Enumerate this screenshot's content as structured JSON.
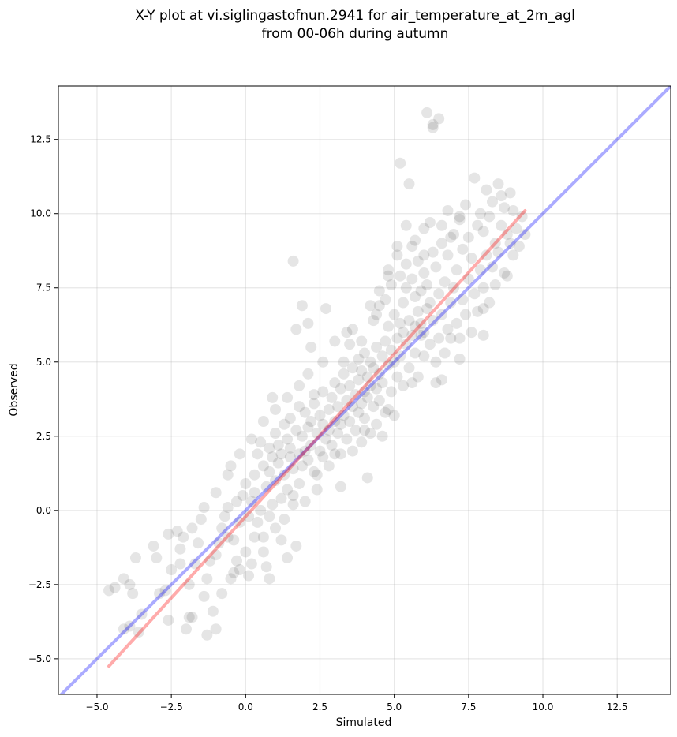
{
  "chart_data": {
    "type": "scatter",
    "title_line1": "X-Y plot at vi.siglingastofnun.2941 for air_temperature_at_2m_agl",
    "title_line2": "from 00-06h during autumn",
    "xlabel": "Simulated",
    "ylabel": "Observed",
    "xlim": [
      -6.3,
      14.3
    ],
    "ylim": [
      -6.2,
      14.3
    ],
    "xticks": [
      -5.0,
      -2.5,
      0.0,
      2.5,
      5.0,
      7.5,
      10.0,
      12.5
    ],
    "yticks": [
      -5.0,
      -2.5,
      0.0,
      2.5,
      5.0,
      7.5,
      10.0,
      12.5
    ],
    "xtick_labels": [
      "−5.0",
      "−2.5",
      "0.0",
      "2.5",
      "5.0",
      "7.5",
      "10.0",
      "12.5"
    ],
    "ytick_labels": [
      "−5.0",
      "−2.5",
      "0.0",
      "2.5",
      "5.0",
      "7.5",
      "10.0",
      "12.5"
    ],
    "grid": true,
    "point_color": "#000000",
    "point_alpha": 0.1,
    "identity_line": {
      "color": "#0000ff",
      "alpha": 0.33,
      "from": [
        -6.3,
        -6.3
      ],
      "to": [
        14.3,
        14.3
      ]
    },
    "fit_line": {
      "color": "#ff0000",
      "alpha": 0.33,
      "from": [
        -4.6,
        -5.25
      ],
      "to": [
        9.4,
        10.1
      ]
    },
    "points": [
      [
        -4.6,
        -2.7
      ],
      [
        -4.4,
        -2.6
      ],
      [
        -4.1,
        -2.3
      ],
      [
        -3.9,
        -2.5
      ],
      [
        -3.8,
        -2.8
      ],
      [
        -4.1,
        -4.0
      ],
      [
        -3.9,
        -3.9
      ],
      [
        -3.6,
        -4.1
      ],
      [
        -3.5,
        -3.5
      ],
      [
        -3.7,
        -1.6
      ],
      [
        -3.1,
        -1.2
      ],
      [
        -3.0,
        -1.6
      ],
      [
        -2.9,
        -2.8
      ],
      [
        -2.7,
        -2.7
      ],
      [
        -2.6,
        -3.7
      ],
      [
        -2.5,
        -2.0
      ],
      [
        -2.3,
        -0.7
      ],
      [
        -2.2,
        -1.3
      ],
      [
        -2.1,
        -0.9
      ],
      [
        -1.9,
        -3.6
      ],
      [
        -2.0,
        -4.0
      ],
      [
        -1.8,
        -3.6
      ],
      [
        -1.8,
        -0.6
      ],
      [
        -1.7,
        -1.8
      ],
      [
        -1.6,
        -1.1
      ],
      [
        -1.4,
        -2.9
      ],
      [
        -1.3,
        -2.3
      ],
      [
        -1.3,
        -4.2
      ],
      [
        -1.0,
        -4.0
      ],
      [
        -1.1,
        -3.4
      ],
      [
        -1.0,
        -1.5
      ],
      [
        -0.9,
        -1.1
      ],
      [
        -0.8,
        -0.6
      ],
      [
        -0.7,
        -0.2
      ],
      [
        -0.6,
        0.1
      ],
      [
        -0.6,
        -0.9
      ],
      [
        -0.5,
        -2.3
      ],
      [
        -0.4,
        -2.1
      ],
      [
        -0.3,
        -1.7
      ],
      [
        -0.2,
        -2.0
      ],
      [
        -0.5,
        1.5
      ],
      [
        -0.3,
        0.3
      ],
      [
        -0.2,
        -0.4
      ],
      [
        -0.1,
        0.5
      ],
      [
        0.0,
        0.9
      ],
      [
        0.0,
        -1.4
      ],
      [
        0.1,
        -0.2
      ],
      [
        0.1,
        -2.2
      ],
      [
        0.2,
        0.3
      ],
      [
        0.2,
        -1.8
      ],
      [
        0.3,
        1.2
      ],
      [
        0.3,
        0.6
      ],
      [
        0.4,
        -0.4
      ],
      [
        0.4,
        1.9
      ],
      [
        0.5,
        2.3
      ],
      [
        0.5,
        0.0
      ],
      [
        0.6,
        -0.9
      ],
      [
        0.6,
        1.5
      ],
      [
        0.7,
        0.8
      ],
      [
        0.7,
        -1.9
      ],
      [
        0.8,
        2.1
      ],
      [
        0.8,
        1.3
      ],
      [
        0.8,
        -2.3
      ],
      [
        0.9,
        0.2
      ],
      [
        0.9,
        1.8
      ],
      [
        0.9,
        3.8
      ],
      [
        1.0,
        2.6
      ],
      [
        1.0,
        1.0
      ],
      [
        1.0,
        -0.6
      ],
      [
        1.1,
        1.6
      ],
      [
        1.1,
        2.2
      ],
      [
        1.2,
        0.4
      ],
      [
        1.2,
        1.9
      ],
      [
        1.2,
        -1.0
      ],
      [
        1.3,
        2.9
      ],
      [
        1.3,
        1.2
      ],
      [
        1.4,
        2.4
      ],
      [
        1.4,
        0.7
      ],
      [
        1.4,
        -1.6
      ],
      [
        1.5,
        1.8
      ],
      [
        1.5,
        2.1
      ],
      [
        1.5,
        3.1
      ],
      [
        1.6,
        1.4
      ],
      [
        1.6,
        0.2
      ],
      [
        1.6,
        8.4
      ],
      [
        1.7,
        6.1
      ],
      [
        1.7,
        2.7
      ],
      [
        1.7,
        -1.2
      ],
      [
        1.8,
        1.9
      ],
      [
        1.8,
        3.5
      ],
      [
        1.8,
        0.9
      ],
      [
        1.9,
        2.5
      ],
      [
        1.9,
        6.9
      ],
      [
        1.9,
        1.5
      ],
      [
        2.0,
        3.3
      ],
      [
        2.0,
        2.0
      ],
      [
        2.0,
        0.3
      ],
      [
        2.1,
        6.3
      ],
      [
        2.1,
        2.8
      ],
      [
        2.1,
        1.7
      ],
      [
        2.2,
        5.5
      ],
      [
        2.2,
        3.0
      ],
      [
        2.2,
        2.2
      ],
      [
        2.3,
        1.3
      ],
      [
        2.3,
        3.6
      ],
      [
        2.4,
        2.6
      ],
      [
        2.4,
        0.7
      ],
      [
        2.5,
        2.0
      ],
      [
        2.5,
        3.2
      ],
      [
        2.6,
        1.8
      ],
      [
        2.6,
        2.9
      ],
      [
        2.6,
        4.0
      ],
      [
        2.7,
        6.8
      ],
      [
        2.7,
        2.4
      ],
      [
        2.8,
        3.4
      ],
      [
        2.8,
        1.5
      ],
      [
        2.8,
        2.7
      ],
      [
        2.9,
        3.8
      ],
      [
        2.9,
        2.2
      ],
      [
        3.0,
        3.0
      ],
      [
        3.0,
        4.3
      ],
      [
        3.0,
        1.9
      ],
      [
        3.1,
        2.6
      ],
      [
        3.1,
        3.5
      ],
      [
        3.2,
        4.1
      ],
      [
        3.2,
        2.9
      ],
      [
        3.2,
        0.8
      ],
      [
        3.3,
        3.2
      ],
      [
        3.3,
        4.6
      ],
      [
        3.4,
        2.4
      ],
      [
        3.4,
        3.7
      ],
      [
        3.4,
        6.0
      ],
      [
        3.5,
        5.6
      ],
      [
        3.5,
        3.0
      ],
      [
        3.5,
        4.2
      ],
      [
        3.6,
        3.5
      ],
      [
        3.6,
        2.0
      ],
      [
        3.6,
        4.8
      ],
      [
        3.7,
        3.9
      ],
      [
        3.7,
        2.7
      ],
      [
        3.8,
        4.4
      ],
      [
        3.8,
        3.3
      ],
      [
        3.8,
        5.1
      ],
      [
        3.9,
        3.6
      ],
      [
        3.9,
        4.7
      ],
      [
        3.9,
        2.3
      ],
      [
        4.0,
        4.0
      ],
      [
        4.0,
        5.3
      ],
      [
        4.0,
        3.1
      ],
      [
        4.1,
        4.5
      ],
      [
        4.1,
        3.8
      ],
      [
        4.1,
        1.1
      ],
      [
        4.2,
        5.0
      ],
      [
        4.2,
        4.2
      ],
      [
        4.2,
        2.6
      ],
      [
        4.3,
        6.4
      ],
      [
        4.3,
        3.5
      ],
      [
        4.3,
        4.8
      ],
      [
        4.4,
        5.5
      ],
      [
        4.4,
        4.1
      ],
      [
        4.4,
        2.9
      ],
      [
        4.5,
        4.6
      ],
      [
        4.5,
        6.9
      ],
      [
        4.5,
        3.7
      ],
      [
        4.6,
        5.2
      ],
      [
        4.6,
        4.3
      ],
      [
        4.6,
        2.5
      ],
      [
        4.7,
        7.1
      ],
      [
        4.7,
        5.7
      ],
      [
        4.7,
        3.3
      ],
      [
        4.8,
        4.9
      ],
      [
        4.8,
        6.2
      ],
      [
        4.8,
        8.1
      ],
      [
        4.9,
        5.4
      ],
      [
        4.9,
        4.0
      ],
      [
        4.9,
        7.6
      ],
      [
        5.0,
        5.0
      ],
      [
        5.0,
        6.6
      ],
      [
        5.0,
        3.2
      ],
      [
        5.1,
        5.8
      ],
      [
        5.1,
        4.5
      ],
      [
        5.1,
        8.6
      ],
      [
        5.2,
        11.7
      ],
      [
        5.2,
        6.3
      ],
      [
        5.2,
        5.2
      ],
      [
        5.3,
        7.0
      ],
      [
        5.3,
        4.2
      ],
      [
        5.3,
        6.0
      ],
      [
        5.4,
        5.6
      ],
      [
        5.4,
        9.6
      ],
      [
        5.4,
        7.5
      ],
      [
        5.5,
        11.0
      ],
      [
        5.5,
        6.4
      ],
      [
        5.5,
        4.8
      ],
      [
        5.6,
        5.9
      ],
      [
        5.6,
        7.8
      ],
      [
        5.6,
        8.9
      ],
      [
        5.7,
        6.2
      ],
      [
        5.7,
        5.3
      ],
      [
        5.7,
        7.2
      ],
      [
        5.8,
        6.7
      ],
      [
        5.8,
        4.5
      ],
      [
        5.8,
        8.4
      ],
      [
        5.9,
        5.9
      ],
      [
        5.9,
        7.4
      ],
      [
        5.9,
        6.3
      ],
      [
        6.0,
        6.0
      ],
      [
        6.0,
        8.0
      ],
      [
        6.0,
        5.2
      ],
      [
        6.1,
        13.4
      ],
      [
        6.1,
        6.8
      ],
      [
        6.1,
        7.6
      ],
      [
        6.2,
        5.6
      ],
      [
        6.2,
        9.7
      ],
      [
        6.2,
        7.0
      ],
      [
        6.3,
        13.0
      ],
      [
        6.3,
        12.9
      ],
      [
        6.3,
        6.4
      ],
      [
        6.4,
        8.2
      ],
      [
        6.4,
        4.3
      ],
      [
        6.5,
        13.2
      ],
      [
        6.5,
        7.3
      ],
      [
        6.5,
        5.8
      ],
      [
        6.6,
        9.0
      ],
      [
        6.6,
        6.6
      ],
      [
        6.6,
        4.4
      ],
      [
        6.7,
        7.7
      ],
      [
        6.7,
        5.3
      ],
      [
        6.8,
        8.6
      ],
      [
        6.8,
        6.1
      ],
      [
        6.8,
        10.1
      ],
      [
        6.9,
        7.0
      ],
      [
        6.9,
        5.8
      ],
      [
        7.0,
        9.3
      ],
      [
        7.0,
        7.5
      ],
      [
        7.1,
        6.3
      ],
      [
        7.1,
        8.1
      ],
      [
        7.2,
        5.1
      ],
      [
        7.2,
        9.8
      ],
      [
        7.3,
        7.1
      ],
      [
        7.3,
        8.8
      ],
      [
        7.4,
        6.6
      ],
      [
        7.4,
        10.3
      ],
      [
        7.5,
        7.8
      ],
      [
        7.5,
        9.2
      ],
      [
        7.6,
        6.0
      ],
      [
        7.6,
        8.5
      ],
      [
        7.7,
        11.2
      ],
      [
        7.7,
        7.3
      ],
      [
        7.8,
        9.6
      ],
      [
        7.8,
        6.7
      ],
      [
        7.9,
        8.1
      ],
      [
        7.9,
        10.0
      ],
      [
        8.0,
        5.9
      ],
      [
        8.0,
        7.5
      ],
      [
        8.0,
        9.4
      ],
      [
        8.1,
        10.8
      ],
      [
        8.1,
        8.6
      ],
      [
        8.2,
        7.0
      ],
      [
        8.2,
        9.9
      ],
      [
        8.3,
        8.2
      ],
      [
        8.3,
        10.4
      ],
      [
        8.4,
        9.0
      ],
      [
        8.4,
        7.6
      ],
      [
        8.5,
        11.0
      ],
      [
        8.5,
        8.7
      ],
      [
        8.6,
        9.6
      ],
      [
        8.6,
        10.6
      ],
      [
        8.7,
        8.0
      ],
      [
        8.7,
        10.2
      ],
      [
        8.8,
        9.3
      ],
      [
        8.8,
        7.9
      ],
      [
        8.9,
        10.7
      ],
      [
        8.9,
        9.0
      ],
      [
        9.0,
        8.6
      ],
      [
        9.0,
        10.1
      ],
      [
        9.1,
        9.5
      ],
      [
        9.2,
        8.9
      ],
      [
        9.3,
        9.9
      ],
      [
        9.4,
        9.3
      ],
      [
        2.3,
        3.9
      ],
      [
        2.6,
        5.0
      ],
      [
        3.0,
        5.7
      ],
      [
        3.3,
        5.0
      ],
      [
        3.6,
        6.1
      ],
      [
        3.9,
        5.7
      ],
      [
        4.2,
        6.9
      ],
      [
        4.5,
        7.4
      ],
      [
        4.8,
        7.9
      ],
      [
        5.1,
        8.9
      ],
      [
        5.4,
        8.3
      ],
      [
        5.7,
        9.1
      ],
      [
        6.0,
        9.5
      ],
      [
        6.3,
        8.7
      ],
      [
        6.6,
        9.6
      ],
      [
        6.9,
        9.2
      ],
      [
        7.2,
        9.9
      ],
      [
        4.4,
        6.6
      ],
      [
        5.2,
        7.9
      ],
      [
        6.0,
        8.6
      ],
      [
        0.6,
        3.0
      ],
      [
        1.0,
        3.4
      ],
      [
        1.4,
        3.8
      ],
      [
        1.8,
        4.2
      ],
      [
        2.1,
        4.6
      ],
      [
        0.2,
        2.4
      ],
      [
        -0.2,
        1.9
      ],
      [
        -0.6,
        1.2
      ],
      [
        -1.0,
        0.6
      ],
      [
        -1.4,
        0.1
      ],
      [
        0.8,
        -0.2
      ],
      [
        1.6,
        0.5
      ],
      [
        2.4,
        1.2
      ],
      [
        3.2,
        1.9
      ],
      [
        4.0,
        2.7
      ],
      [
        4.8,
        3.4
      ],
      [
        5.6,
        4.3
      ],
      [
        6.4,
        5.0
      ],
      [
        7.2,
        5.8
      ],
      [
        8.0,
        6.8
      ],
      [
        -2.6,
        -0.8
      ],
      [
        -2.2,
        -1.8
      ],
      [
        -1.9,
        -2.5
      ],
      [
        -1.5,
        -0.3
      ],
      [
        -1.2,
        -1.7
      ],
      [
        -0.8,
        -2.8
      ],
      [
        -0.4,
        -1.0
      ],
      [
        0.3,
        -0.9
      ],
      [
        0.6,
        -1.4
      ],
      [
        1.3,
        -0.3
      ]
    ]
  }
}
